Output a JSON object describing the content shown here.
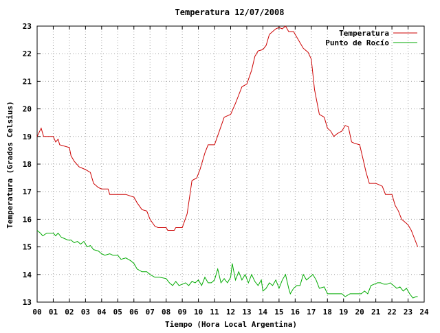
{
  "chart_data": {
    "type": "line",
    "title": "Temperatura 12/07/2008",
    "xlabel": "Tiempo (Hora Local Argentina)",
    "ylabel": "Temperatura (Grados Celsius)",
    "xlim": [
      0,
      24
    ],
    "ylim": [
      13,
      23
    ],
    "x_ticks": [
      "00",
      "01",
      "02",
      "03",
      "04",
      "05",
      "06",
      "07",
      "08",
      "09",
      "10",
      "11",
      "12",
      "13",
      "14",
      "15",
      "16",
      "17",
      "18",
      "19",
      "20",
      "21",
      "22",
      "23",
      "24"
    ],
    "y_ticks": [
      "13",
      "14",
      "15",
      "16",
      "17",
      "18",
      "19",
      "20",
      "21",
      "22",
      "23"
    ],
    "grid": true,
    "legend_position": "top-right",
    "series": [
      {
        "name": "Temperatura",
        "color": "#cc0000",
        "points": [
          [
            0.0,
            19.0
          ],
          [
            0.25,
            19.3
          ],
          [
            0.4,
            19.0
          ],
          [
            1.0,
            19.0
          ],
          [
            1.15,
            18.8
          ],
          [
            1.3,
            18.9
          ],
          [
            1.4,
            18.7
          ],
          [
            2.0,
            18.6
          ],
          [
            2.1,
            18.3
          ],
          [
            2.3,
            18.1
          ],
          [
            2.6,
            17.9
          ],
          [
            3.0,
            17.8
          ],
          [
            3.3,
            17.7
          ],
          [
            3.5,
            17.3
          ],
          [
            3.8,
            17.15
          ],
          [
            4.0,
            17.1
          ],
          [
            4.4,
            17.1
          ],
          [
            4.5,
            16.9
          ],
          [
            5.0,
            16.9
          ],
          [
            5.5,
            16.9
          ],
          [
            6.0,
            16.8
          ],
          [
            6.2,
            16.6
          ],
          [
            6.5,
            16.35
          ],
          [
            6.8,
            16.3
          ],
          [
            7.0,
            16.0
          ],
          [
            7.3,
            15.75
          ],
          [
            7.5,
            15.7
          ],
          [
            8.0,
            15.7
          ],
          [
            8.1,
            15.6
          ],
          [
            8.5,
            15.6
          ],
          [
            8.6,
            15.7
          ],
          [
            9.0,
            15.7
          ],
          [
            9.3,
            16.2
          ],
          [
            9.5,
            17.0
          ],
          [
            9.6,
            17.4
          ],
          [
            9.9,
            17.5
          ],
          [
            10.1,
            17.8
          ],
          [
            10.4,
            18.4
          ],
          [
            10.6,
            18.7
          ],
          [
            11.0,
            18.7
          ],
          [
            11.3,
            19.2
          ],
          [
            11.6,
            19.7
          ],
          [
            12.0,
            19.8
          ],
          [
            12.3,
            20.2
          ],
          [
            12.5,
            20.5
          ],
          [
            12.7,
            20.8
          ],
          [
            13.0,
            20.9
          ],
          [
            13.3,
            21.4
          ],
          [
            13.5,
            21.9
          ],
          [
            13.7,
            22.1
          ],
          [
            14.0,
            22.15
          ],
          [
            14.2,
            22.3
          ],
          [
            14.4,
            22.7
          ],
          [
            14.6,
            22.8
          ],
          [
            14.8,
            22.9
          ],
          [
            15.0,
            22.95
          ],
          [
            15.2,
            22.9
          ],
          [
            15.4,
            23.0
          ],
          [
            15.6,
            22.8
          ],
          [
            15.9,
            22.8
          ],
          [
            16.2,
            22.5
          ],
          [
            16.5,
            22.2
          ],
          [
            16.8,
            22.05
          ],
          [
            17.0,
            21.8
          ],
          [
            17.2,
            20.7
          ],
          [
            17.5,
            19.8
          ],
          [
            17.8,
            19.7
          ],
          [
            18.0,
            19.3
          ],
          [
            18.2,
            19.2
          ],
          [
            18.4,
            19.0
          ],
          [
            18.6,
            19.1
          ],
          [
            18.9,
            19.2
          ],
          [
            19.1,
            19.4
          ],
          [
            19.3,
            19.35
          ],
          [
            19.5,
            18.8
          ],
          [
            19.7,
            18.75
          ],
          [
            20.0,
            18.7
          ],
          [
            20.2,
            18.2
          ],
          [
            20.4,
            17.7
          ],
          [
            20.6,
            17.3
          ],
          [
            21.0,
            17.3
          ],
          [
            21.2,
            17.25
          ],
          [
            21.4,
            17.2
          ],
          [
            21.6,
            16.9
          ],
          [
            22.0,
            16.9
          ],
          [
            22.2,
            16.5
          ],
          [
            22.4,
            16.3
          ],
          [
            22.6,
            16.0
          ],
          [
            22.8,
            15.9
          ],
          [
            23.0,
            15.8
          ],
          [
            23.2,
            15.6
          ],
          [
            23.4,
            15.3
          ],
          [
            23.6,
            15.0
          ]
        ]
      },
      {
        "name": "Punto de Rocío",
        "color": "#00aa00",
        "points": [
          [
            0.0,
            15.6
          ],
          [
            0.2,
            15.5
          ],
          [
            0.35,
            15.4
          ],
          [
            0.6,
            15.5
          ],
          [
            1.0,
            15.5
          ],
          [
            1.15,
            15.4
          ],
          [
            1.3,
            15.5
          ],
          [
            1.5,
            15.35
          ],
          [
            1.7,
            15.3
          ],
          [
            1.9,
            15.25
          ],
          [
            2.1,
            15.25
          ],
          [
            2.3,
            15.15
          ],
          [
            2.5,
            15.2
          ],
          [
            2.7,
            15.1
          ],
          [
            2.9,
            15.2
          ],
          [
            3.1,
            15.0
          ],
          [
            3.3,
            15.05
          ],
          [
            3.5,
            14.9
          ],
          [
            3.8,
            14.85
          ],
          [
            4.0,
            14.75
          ],
          [
            4.2,
            14.7
          ],
          [
            4.5,
            14.75
          ],
          [
            4.7,
            14.7
          ],
          [
            5.0,
            14.7
          ],
          [
            5.2,
            14.55
          ],
          [
            5.5,
            14.6
          ],
          [
            5.8,
            14.5
          ],
          [
            6.0,
            14.4
          ],
          [
            6.2,
            14.2
          ],
          [
            6.5,
            14.1
          ],
          [
            6.8,
            14.1
          ],
          [
            7.0,
            14.0
          ],
          [
            7.3,
            13.9
          ],
          [
            7.6,
            13.9
          ],
          [
            8.0,
            13.85
          ],
          [
            8.2,
            13.7
          ],
          [
            8.4,
            13.6
          ],
          [
            8.6,
            13.75
          ],
          [
            8.8,
            13.6
          ],
          [
            9.0,
            13.65
          ],
          [
            9.2,
            13.7
          ],
          [
            9.4,
            13.6
          ],
          [
            9.6,
            13.75
          ],
          [
            9.8,
            13.7
          ],
          [
            10.0,
            13.8
          ],
          [
            10.2,
            13.6
          ],
          [
            10.4,
            13.9
          ],
          [
            10.6,
            13.7
          ],
          [
            10.8,
            13.7
          ],
          [
            11.0,
            13.8
          ],
          [
            11.2,
            14.2
          ],
          [
            11.4,
            13.7
          ],
          [
            11.6,
            13.85
          ],
          [
            11.8,
            13.7
          ],
          [
            12.0,
            13.9
          ],
          [
            12.1,
            14.4
          ],
          [
            12.3,
            13.8
          ],
          [
            12.5,
            14.1
          ],
          [
            12.7,
            13.8
          ],
          [
            12.9,
            14.0
          ],
          [
            13.1,
            13.7
          ],
          [
            13.3,
            14.0
          ],
          [
            13.5,
            13.75
          ],
          [
            13.7,
            13.6
          ],
          [
            13.9,
            13.8
          ],
          [
            14.0,
            13.4
          ],
          [
            14.2,
            13.5
          ],
          [
            14.4,
            13.7
          ],
          [
            14.6,
            13.6
          ],
          [
            14.8,
            13.8
          ],
          [
            15.0,
            13.5
          ],
          [
            15.2,
            13.8
          ],
          [
            15.4,
            14.0
          ],
          [
            15.6,
            13.5
          ],
          [
            15.7,
            13.3
          ],
          [
            15.9,
            13.5
          ],
          [
            16.1,
            13.6
          ],
          [
            16.3,
            13.6
          ],
          [
            16.5,
            14.0
          ],
          [
            16.7,
            13.8
          ],
          [
            16.9,
            13.9
          ],
          [
            17.1,
            14.0
          ],
          [
            17.3,
            13.8
          ],
          [
            17.5,
            13.5
          ],
          [
            17.8,
            13.55
          ],
          [
            18.0,
            13.3
          ],
          [
            18.3,
            13.3
          ],
          [
            18.6,
            13.3
          ],
          [
            18.9,
            13.3
          ],
          [
            19.1,
            13.2
          ],
          [
            19.4,
            13.3
          ],
          [
            19.6,
            13.3
          ],
          [
            19.9,
            13.3
          ],
          [
            20.1,
            13.3
          ],
          [
            20.3,
            13.4
          ],
          [
            20.5,
            13.3
          ],
          [
            20.7,
            13.6
          ],
          [
            20.9,
            13.65
          ],
          [
            21.1,
            13.7
          ],
          [
            21.3,
            13.7
          ],
          [
            21.5,
            13.65
          ],
          [
            21.7,
            13.65
          ],
          [
            21.9,
            13.7
          ],
          [
            22.1,
            13.6
          ],
          [
            22.3,
            13.5
          ],
          [
            22.5,
            13.55
          ],
          [
            22.7,
            13.4
          ],
          [
            22.9,
            13.5
          ],
          [
            23.1,
            13.3
          ],
          [
            23.3,
            13.15
          ],
          [
            23.5,
            13.2
          ],
          [
            23.6,
            13.2
          ]
        ]
      }
    ]
  }
}
